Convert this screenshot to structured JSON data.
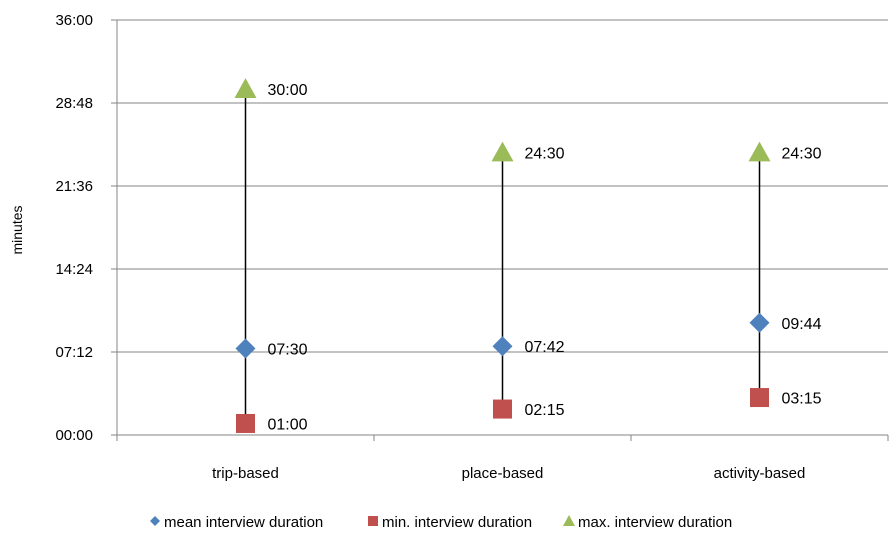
{
  "chart_data": {
    "type": "scatter",
    "title": "",
    "xlabel": "",
    "ylabel": "minutes",
    "categories": [
      "trip-based",
      "place-based",
      "activity-based"
    ],
    "y_ticks": [
      "00:00",
      "07:12",
      "14:24",
      "21:36",
      "28:48",
      "36:00"
    ],
    "ylim_minutes": [
      0,
      36
    ],
    "grid": true,
    "legend_position": "bottom",
    "series": [
      {
        "name": "mean interview duration",
        "marker": "diamond",
        "color": "#4F81BD",
        "values_minutes": [
          7.5,
          7.7,
          9.733
        ],
        "labels": [
          "07:30",
          "07:42",
          "09:44"
        ]
      },
      {
        "name": "min. interview duration",
        "marker": "square",
        "color": "#C0504D",
        "values_minutes": [
          1.0,
          2.25,
          3.25
        ],
        "labels": [
          "01:00",
          "02:15",
          "03:15"
        ]
      },
      {
        "name": "max. interview duration",
        "marker": "triangle",
        "color": "#9BBB59",
        "values_minutes": [
          30.0,
          24.5,
          24.5
        ],
        "labels": [
          "30:00",
          "24:30",
          "24:30"
        ]
      }
    ]
  }
}
